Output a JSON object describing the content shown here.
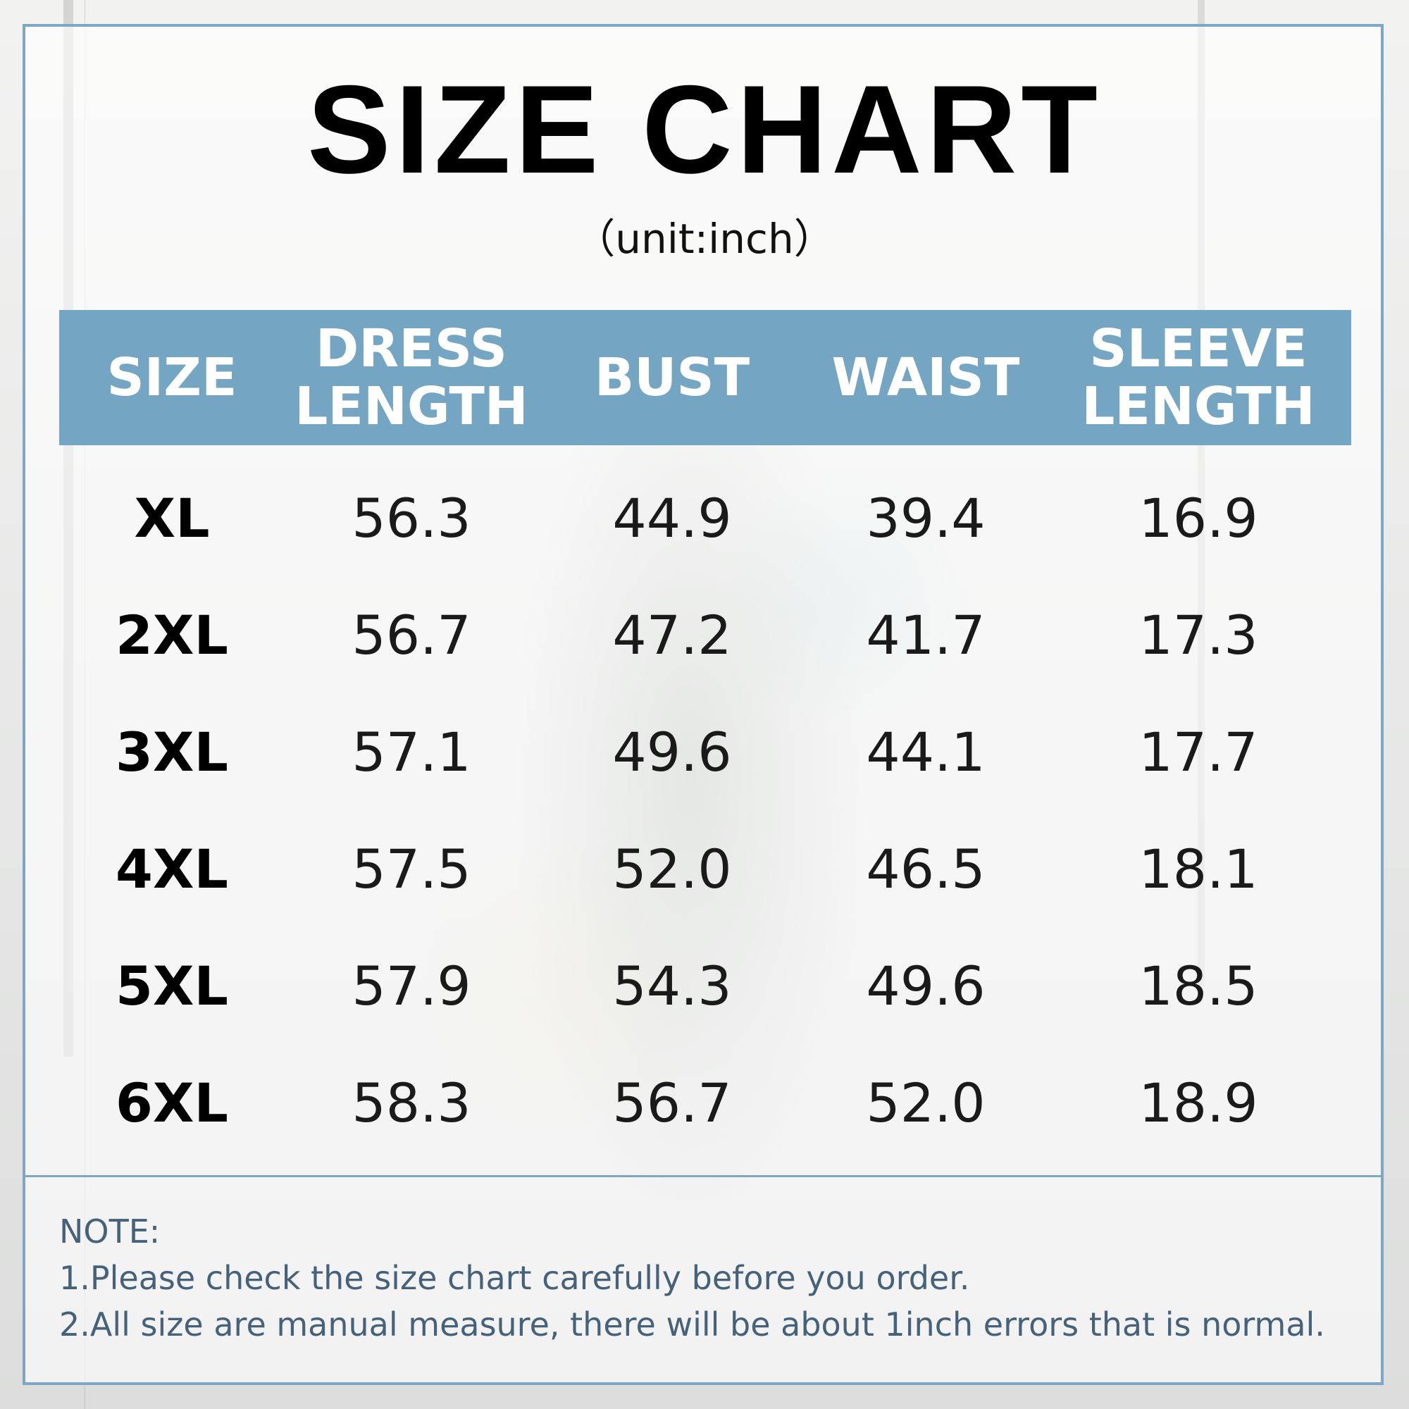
{
  "title": "SIZE CHART",
  "unit": "（unit:inch）",
  "table": {
    "headers": [
      "SIZE",
      "DRESS\nLENGTH",
      "BUST",
      "WAIST",
      "SLEEVE\nLENGTH"
    ],
    "rows": [
      [
        "XL",
        "56.3",
        "44.9",
        "39.4",
        "16.9"
      ],
      [
        "2XL",
        "56.7",
        "47.2",
        "41.7",
        "17.3"
      ],
      [
        "3XL",
        "57.1",
        "49.6",
        "44.1",
        "17.7"
      ],
      [
        "4XL",
        "57.5",
        "52.0",
        "46.5",
        "18.1"
      ],
      [
        "5XL",
        "57.9",
        "54.3",
        "49.6",
        "18.5"
      ],
      [
        "6XL",
        "58.3",
        "56.7",
        "52.0",
        "18.9"
      ]
    ]
  },
  "notes": {
    "heading": "NOTE:",
    "lines": [
      "1.Please check the size chart carefully before you order.",
      "2.All size are manual measure, there will be about 1inch errors that is normal."
    ]
  },
  "colors": {
    "header_bg": "#74a5c2",
    "border": "#7ea7c4",
    "note_text": "#45627a"
  }
}
